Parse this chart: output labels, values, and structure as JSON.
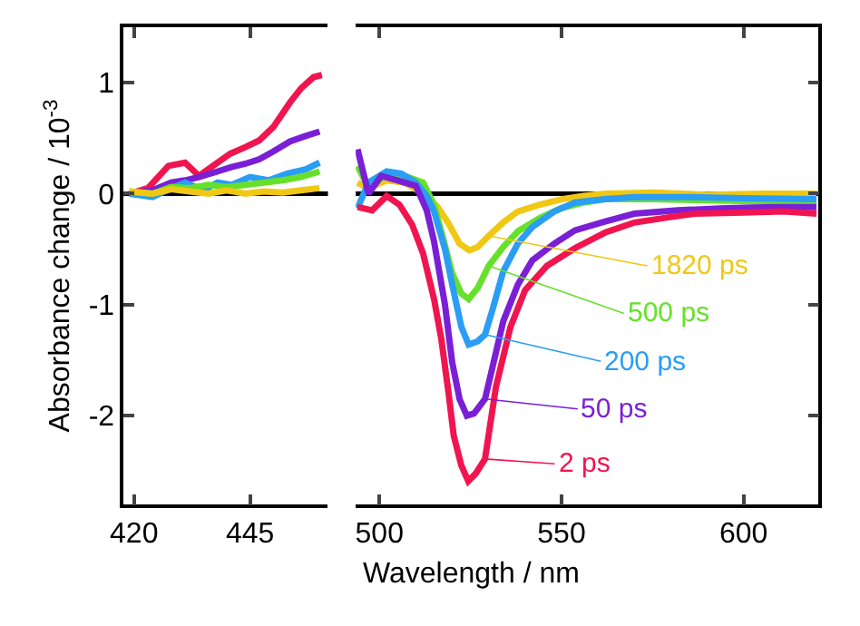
{
  "chart_data": [
    {
      "type": "line",
      "ylabel": "Absorbance change / 10$^{-3}$",
      "xlabel": "Wavelength / nm",
      "xlim": [
        417.7,
        461.8
      ],
      "xticks": [
        420,
        445
      ],
      "ylim": [
        -2.8,
        1.5
      ],
      "yticks": [
        1,
        0,
        -1,
        -2
      ],
      "grid": false,
      "ref_lines": [
        {
          "axis": "y",
          "value": 0,
          "color": "#000000"
        }
      ],
      "series": [
        {
          "color": "#f0154f",
          "x": [
            419,
            423,
            427.4,
            431,
            434,
            437,
            440.7,
            444,
            447,
            450,
            453.6,
            456,
            458.7,
            460.5
          ],
          "values": [
            0.0,
            0.05,
            0.25,
            0.28,
            0.16,
            0.25,
            0.36,
            0.42,
            0.48,
            0.6,
            0.82,
            0.95,
            1.05,
            1.07
          ]
        },
        {
          "color": "#7a1fd6",
          "x": [
            419,
            424,
            428,
            431,
            434,
            438,
            441,
            444,
            447,
            450,
            453.6,
            457,
            460
          ],
          "values": [
            0.0,
            0.03,
            0.1,
            0.12,
            0.15,
            0.2,
            0.24,
            0.27,
            0.31,
            0.38,
            0.47,
            0.52,
            0.56
          ]
        },
        {
          "color": "#2a9df4",
          "x": [
            419,
            424,
            428,
            431,
            435,
            438,
            441,
            445,
            449,
            453,
            457,
            460
          ],
          "values": [
            0.0,
            -0.03,
            0.05,
            0.1,
            0.03,
            0.1,
            0.08,
            0.15,
            0.12,
            0.18,
            0.22,
            0.28
          ]
        },
        {
          "color": "#66e02a",
          "x": [
            419,
            424,
            428,
            432,
            436,
            440,
            444,
            448,
            452,
            456,
            460
          ],
          "values": [
            0.02,
            0.0,
            0.06,
            0.05,
            0.08,
            0.06,
            0.08,
            0.1,
            0.12,
            0.15,
            0.2
          ]
        },
        {
          "color": "#f0c814",
          "x": [
            419,
            424,
            428,
            432,
            436,
            440,
            444,
            448,
            452,
            456,
            460
          ],
          "values": [
            0.02,
            0.0,
            0.04,
            0.02,
            0.0,
            0.03,
            0.0,
            0.02,
            0.01,
            0.03,
            0.05
          ]
        }
      ]
    },
    {
      "type": "line",
      "xlim": [
        493.5,
        620.5
      ],
      "xticks": [
        500,
        550,
        600
      ],
      "ylim": [
        -2.8,
        1.5
      ],
      "yticks": [
        1,
        0,
        -1,
        -2
      ],
      "grid": false,
      "legend": "bottom right",
      "tick_labels": "x",
      "ref_lines": [
        {
          "axis": "y",
          "value": 0,
          "color": "#000000"
        }
      ],
      "series": [
        {
          "name": "1820 ps",
          "color": "#f0c814",
          "x": [
            494,
            497,
            502,
            507,
            512,
            516,
            519,
            522,
            524.7,
            527,
            530,
            534,
            538,
            544,
            550,
            556,
            562,
            575,
            590,
            605,
            620
          ],
          "values": [
            0.1,
            0.05,
            0.12,
            0.1,
            0.0,
            -0.12,
            -0.27,
            -0.45,
            -0.51,
            -0.48,
            -0.38,
            -0.26,
            -0.16,
            -0.1,
            -0.05,
            -0.02,
            0.0,
            0.01,
            -0.01,
            0.0,
            0.0
          ]
        },
        {
          "name": "500 ps",
          "color": "#66e02a",
          "x": [
            494,
            497,
            502,
            507,
            512,
            515,
            517,
            520,
            522.5,
            524.5,
            527,
            530,
            534,
            538,
            544,
            550,
            556,
            562,
            575,
            590,
            605,
            620
          ],
          "values": [
            0.25,
            0.05,
            0.18,
            0.16,
            0.1,
            -0.1,
            -0.34,
            -0.72,
            -0.9,
            -0.95,
            -0.85,
            -0.65,
            -0.48,
            -0.34,
            -0.22,
            -0.13,
            -0.08,
            -0.05,
            -0.05,
            -0.06,
            -0.07,
            -0.08
          ]
        },
        {
          "name": "200 ps",
          "color": "#2a9df4",
          "x": [
            494,
            497,
            502,
            506,
            510,
            513,
            515,
            518,
            520,
            522.5,
            524.5,
            527,
            529,
            531,
            534,
            538,
            542,
            548,
            553.7,
            562,
            570,
            585,
            600,
            620
          ],
          "values": [
            -0.13,
            0.1,
            0.2,
            0.18,
            0.1,
            -0.02,
            -0.16,
            -0.5,
            -0.82,
            -1.2,
            -1.36,
            -1.33,
            -1.27,
            -1.05,
            -0.7,
            -0.45,
            -0.3,
            -0.16,
            -0.08,
            -0.05,
            -0.03,
            -0.03,
            -0.04,
            -0.05
          ]
        },
        {
          "name": "50 ps",
          "color": "#7a1fd6",
          "x": [
            494,
            497,
            500.5,
            505,
            510,
            513,
            515,
            518,
            520,
            522,
            524,
            526,
            529,
            531.5,
            534,
            538,
            542,
            548,
            553.7,
            562,
            570,
            582,
            595,
            608,
            620
          ],
          "values": [
            0.4,
            0.0,
            0.16,
            0.12,
            0.07,
            -0.15,
            -0.43,
            -1.0,
            -1.52,
            -1.85,
            -2.0,
            -1.98,
            -1.85,
            -1.5,
            -1.15,
            -0.82,
            -0.6,
            -0.45,
            -0.33,
            -0.25,
            -0.18,
            -0.15,
            -0.13,
            -0.12,
            -0.12
          ]
        },
        {
          "name": "2 ps",
          "color": "#f0154f",
          "x": [
            494,
            498,
            502,
            505.5,
            509,
            512,
            515,
            517,
            519,
            520.4,
            522.5,
            524.4,
            526.5,
            529,
            532,
            536,
            540,
            546,
            553.7,
            562,
            570,
            578,
            586.6,
            600,
            611,
            620
          ],
          "values": [
            -0.12,
            -0.15,
            -0.02,
            -0.1,
            -0.28,
            -0.54,
            -0.95,
            -1.31,
            -1.8,
            -2.18,
            -2.45,
            -2.59,
            -2.52,
            -2.39,
            -1.74,
            -1.2,
            -0.87,
            -0.65,
            -0.49,
            -0.35,
            -0.26,
            -0.22,
            -0.18,
            -0.17,
            -0.16,
            -0.18
          ]
        }
      ]
    }
  ]
}
